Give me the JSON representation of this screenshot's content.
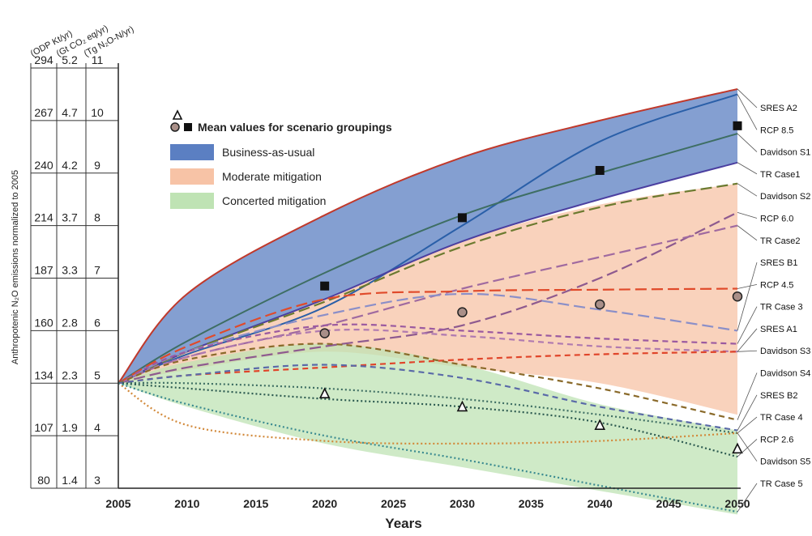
{
  "chart_data": {
    "type": "line",
    "xlabel": "Years",
    "ylabel_left": "Anthropotenic N₂O emissions normalized to 2005",
    "xlim": [
      2005,
      2050
    ],
    "x_ticks": [
      2005,
      2010,
      2015,
      2020,
      2025,
      2030,
      2035,
      2040,
      2045,
      2050
    ],
    "y_axes": [
      {
        "unit": "(ODP Kt/yr)",
        "ticks": [
          "294",
          "267",
          "240",
          "214",
          "187",
          "160",
          "134",
          "107",
          "80"
        ]
      },
      {
        "unit": "(Gt CO₂ eq/yr)",
        "ticks": [
          "5.2",
          "4.7",
          "4.2",
          "3.7",
          "3.3",
          "2.8",
          "2.3",
          "1.9",
          "1.4"
        ]
      },
      {
        "unit": "(Tg N₂O-N/yr)",
        "ticks": [
          "11",
          "10",
          "9",
          "8",
          "7",
          "6",
          "5",
          "4",
          "3"
        ]
      }
    ],
    "ylim": [
      3,
      11
    ],
    "legend": {
      "markers_label": "Mean values for scenario groupings",
      "items": [
        {
          "label": "Business-as-usual",
          "color": "#5b7fc2"
        },
        {
          "label": "Moderate mitigation",
          "color": "#f7c3a6"
        },
        {
          "label": "Concerted mitigation",
          "color": "#bfe3b4"
        }
      ]
    },
    "bands": [
      {
        "group": "Business-as-usual",
        "color": "#5b7fc2",
        "upper": [
          [
            2005,
            5.0
          ],
          [
            2010,
            6.7
          ],
          [
            2020,
            8.2
          ],
          [
            2030,
            9.3
          ],
          [
            2040,
            10.0
          ],
          [
            2050,
            10.6
          ]
        ],
        "lower": [
          [
            2005,
            5.0
          ],
          [
            2010,
            5.6
          ],
          [
            2020,
            6.6
          ],
          [
            2030,
            7.7
          ],
          [
            2040,
            8.5
          ],
          [
            2050,
            9.2
          ]
        ]
      },
      {
        "group": "Moderate mitigation",
        "color": "#f7c3a6",
        "upper": [
          [
            2005,
            5.0
          ],
          [
            2010,
            5.6
          ],
          [
            2020,
            6.6
          ],
          [
            2030,
            7.7
          ],
          [
            2040,
            8.4
          ],
          [
            2050,
            8.8
          ]
        ],
        "lower": [
          [
            2005,
            5.0
          ],
          [
            2010,
            5.25
          ],
          [
            2020,
            5.6
          ],
          [
            2030,
            5.3
          ],
          [
            2040,
            5.0
          ],
          [
            2050,
            4.4
          ]
        ]
      },
      {
        "group": "Concerted mitigation",
        "color": "#bfe3b4",
        "upper": [
          [
            2005,
            5.0
          ],
          [
            2010,
            5.4
          ],
          [
            2020,
            5.75
          ],
          [
            2030,
            5.35
          ],
          [
            2040,
            4.6
          ],
          [
            2050,
            4.1
          ]
        ],
        "lower": [
          [
            2005,
            5.0
          ],
          [
            2010,
            4.55
          ],
          [
            2020,
            3.85
          ],
          [
            2030,
            3.4
          ],
          [
            2040,
            2.95
          ],
          [
            2050,
            2.5
          ]
        ]
      }
    ],
    "series": [
      {
        "name": "SRES A2",
        "color": "#c0392b",
        "style": "solid",
        "points": [
          [
            2005,
            5.0
          ],
          [
            2010,
            6.7
          ],
          [
            2020,
            8.2
          ],
          [
            2030,
            9.3
          ],
          [
            2040,
            10.0
          ],
          [
            2050,
            10.6
          ]
        ]
      },
      {
        "name": "RCP 8.5",
        "color": "#2a5fa8",
        "style": "solid",
        "points": [
          [
            2005,
            5.0
          ],
          [
            2010,
            5.55
          ],
          [
            2020,
            6.45
          ],
          [
            2030,
            8.0
          ],
          [
            2040,
            9.6
          ],
          [
            2050,
            10.5
          ]
        ]
      },
      {
        "name": "Davidson S1",
        "color": "#3e6e63",
        "style": "solid",
        "points": [
          [
            2005,
            5.0
          ],
          [
            2010,
            5.8
          ],
          [
            2020,
            7.1
          ],
          [
            2030,
            8.2
          ],
          [
            2040,
            9.0
          ],
          [
            2050,
            9.75
          ]
        ]
      },
      {
        "name": "TR Case1",
        "color": "#4b3fa0",
        "style": "solid",
        "points": [
          [
            2005,
            5.0
          ],
          [
            2010,
            5.6
          ],
          [
            2020,
            6.6
          ],
          [
            2030,
            7.7
          ],
          [
            2040,
            8.5
          ],
          [
            2050,
            9.2
          ]
        ]
      },
      {
        "name": "Davidson S2",
        "color": "#6b7a2f",
        "style": "longdash",
        "points": [
          [
            2005,
            5.0
          ],
          [
            2010,
            5.6
          ],
          [
            2020,
            6.55
          ],
          [
            2030,
            7.6
          ],
          [
            2040,
            8.35
          ],
          [
            2050,
            8.8
          ]
        ]
      },
      {
        "name": "RCP 6.0",
        "color": "#8e5a8f",
        "style": "longdash",
        "points": [
          [
            2005,
            5.0
          ],
          [
            2010,
            5.3
          ],
          [
            2020,
            5.7
          ],
          [
            2030,
            6.1
          ],
          [
            2040,
            7.0
          ],
          [
            2050,
            8.25
          ]
        ]
      },
      {
        "name": "TR Case2",
        "color": "#a06aa0",
        "style": "longdash",
        "points": [
          [
            2005,
            5.0
          ],
          [
            2010,
            5.5
          ],
          [
            2020,
            6.1
          ],
          [
            2030,
            6.8
          ],
          [
            2040,
            7.4
          ],
          [
            2050,
            8.0
          ]
        ]
      },
      {
        "name": "SRES B1",
        "color": "#8b8fc8",
        "style": "longdash",
        "points": [
          [
            2005,
            5.0
          ],
          [
            2010,
            5.6
          ],
          [
            2020,
            6.3
          ],
          [
            2030,
            6.7
          ],
          [
            2040,
            6.4
          ],
          [
            2050,
            6.0
          ]
        ]
      },
      {
        "name": "RCP 4.5",
        "color": "#e04a2a",
        "style": "longdash",
        "points": [
          [
            2005,
            5.0
          ],
          [
            2010,
            5.7
          ],
          [
            2020,
            6.6
          ],
          [
            2030,
            6.75
          ],
          [
            2040,
            6.78
          ],
          [
            2050,
            6.8
          ]
        ]
      },
      {
        "name": "TR Case 3",
        "color": "#9b5aa0",
        "style": "dash",
        "points": [
          [
            2005,
            5.0
          ],
          [
            2010,
            5.6
          ],
          [
            2020,
            6.1
          ],
          [
            2030,
            6.0
          ],
          [
            2040,
            5.85
          ],
          [
            2050,
            5.75
          ]
        ]
      },
      {
        "name": "SRES A1",
        "color": "#b07ab0",
        "style": "dash",
        "points": [
          [
            2005,
            5.0
          ],
          [
            2010,
            5.5
          ],
          [
            2020,
            6.0
          ],
          [
            2030,
            5.9
          ],
          [
            2040,
            5.7
          ],
          [
            2050,
            5.6
          ]
        ]
      },
      {
        "name": "Davidson S3",
        "color": "#e0452a",
        "style": "dash",
        "points": [
          [
            2005,
            5.0
          ],
          [
            2010,
            5.15
          ],
          [
            2020,
            5.3
          ],
          [
            2030,
            5.45
          ],
          [
            2040,
            5.55
          ],
          [
            2050,
            5.6
          ]
        ]
      },
      {
        "name": "Davidson S4",
        "color": "#8a6a2a",
        "style": "dash",
        "points": [
          [
            2005,
            5.0
          ],
          [
            2010,
            5.45
          ],
          [
            2020,
            5.75
          ],
          [
            2030,
            5.35
          ],
          [
            2040,
            4.9
          ],
          [
            2050,
            4.3
          ]
        ]
      },
      {
        "name": "SRES B2",
        "color": "#5a6aa8",
        "style": "dash",
        "points": [
          [
            2005,
            5.0
          ],
          [
            2010,
            5.15
          ],
          [
            2020,
            5.35
          ],
          [
            2030,
            5.1
          ],
          [
            2040,
            4.55
          ],
          [
            2050,
            4.1
          ]
        ]
      },
      {
        "name": "TR Case 4",
        "color": "#3e6e63",
        "style": "dot",
        "points": [
          [
            2005,
            5.0
          ],
          [
            2010,
            5.0
          ],
          [
            2020,
            4.9
          ],
          [
            2030,
            4.7
          ],
          [
            2040,
            4.4
          ],
          [
            2050,
            4.05
          ]
        ]
      },
      {
        "name": "RCP 2.6",
        "color": "#2c5a50",
        "style": "dot",
        "points": [
          [
            2005,
            5.0
          ],
          [
            2010,
            4.9
          ],
          [
            2020,
            4.7
          ],
          [
            2030,
            4.55
          ],
          [
            2040,
            4.25
          ],
          [
            2050,
            3.6
          ]
        ]
      },
      {
        "name": "Davidson S5",
        "color": "#d2893a",
        "style": "dot",
        "points": [
          [
            2005,
            5.0
          ],
          [
            2010,
            4.2
          ],
          [
            2020,
            3.9
          ],
          [
            2030,
            3.85
          ],
          [
            2040,
            3.9
          ],
          [
            2050,
            4.05
          ]
        ]
      },
      {
        "name": "TR Case 5",
        "color": "#3a8a90",
        "style": "dot",
        "points": [
          [
            2005,
            5.0
          ],
          [
            2010,
            4.6
          ],
          [
            2020,
            4.0
          ],
          [
            2030,
            3.55
          ],
          [
            2040,
            3.05
          ],
          [
            2050,
            2.55
          ]
        ]
      }
    ],
    "group_means": [
      {
        "marker": "square",
        "points": [
          [
            2020,
            6.85
          ],
          [
            2030,
            8.15
          ],
          [
            2040,
            9.05
          ],
          [
            2050,
            9.9
          ]
        ]
      },
      {
        "marker": "circle",
        "points": [
          [
            2020,
            5.95
          ],
          [
            2030,
            6.35
          ],
          [
            2040,
            6.5
          ],
          [
            2050,
            6.65
          ]
        ]
      },
      {
        "marker": "triangle",
        "points": [
          [
            2020,
            4.8
          ],
          [
            2030,
            4.55
          ],
          [
            2040,
            4.2
          ],
          [
            2050,
            3.75
          ]
        ]
      }
    ]
  }
}
